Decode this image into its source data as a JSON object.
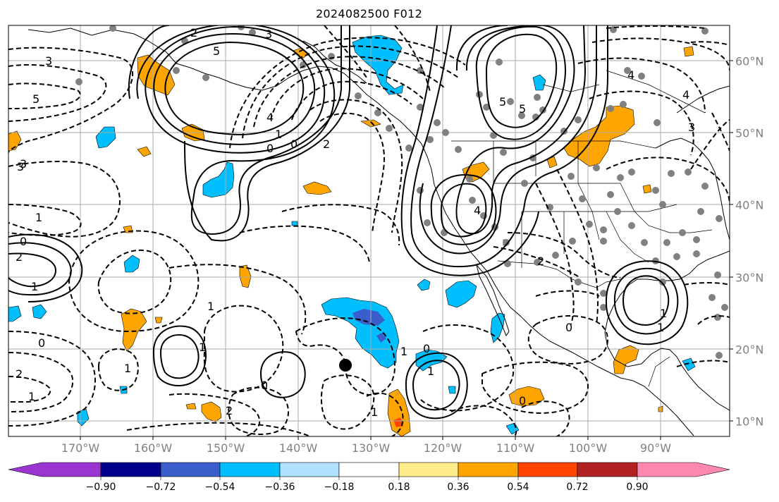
{
  "title": "2024082500 F012",
  "longitude_labels": [
    "170°W",
    "160°W",
    "150°W",
    "140°W",
    "130°W",
    "120°W",
    "110°W",
    "100°W",
    "90°W"
  ],
  "latitude_labels": [
    "60°N",
    "50°N",
    "40°N",
    "30°N",
    "20°N",
    "10°N"
  ],
  "colorbar": {
    "tick_labels": [
      "−0.90",
      "−0.72",
      "−0.54",
      "−0.36",
      "−0.18",
      "0.18",
      "0.36",
      "0.54",
      "0.72",
      "0.90"
    ],
    "colors": [
      "#9a35d2",
      "#00008b",
      "#3a5fcd",
      "#00bfff",
      "#b0e2ff",
      "#ffffff",
      "#ffec8b",
      "#ffa500",
      "#ff4500",
      "#b22222",
      "#ff88b0"
    ]
  },
  "contour_labels": [
    "3",
    "5",
    "5",
    "4",
    "1",
    "0",
    "0",
    "2",
    "3",
    "2",
    "4",
    "5",
    "3",
    "5",
    "1",
    "0",
    "2",
    "4",
    "4",
    "3",
    "2",
    "3",
    "1",
    "0",
    "2",
    "1",
    "1",
    "1",
    "0",
    "1",
    "2",
    "1",
    "0",
    "0",
    "1",
    "1",
    "1",
    "0",
    "1"
  ],
  "storm_marker": "black-dot",
  "observation_points": "gray-dots"
}
